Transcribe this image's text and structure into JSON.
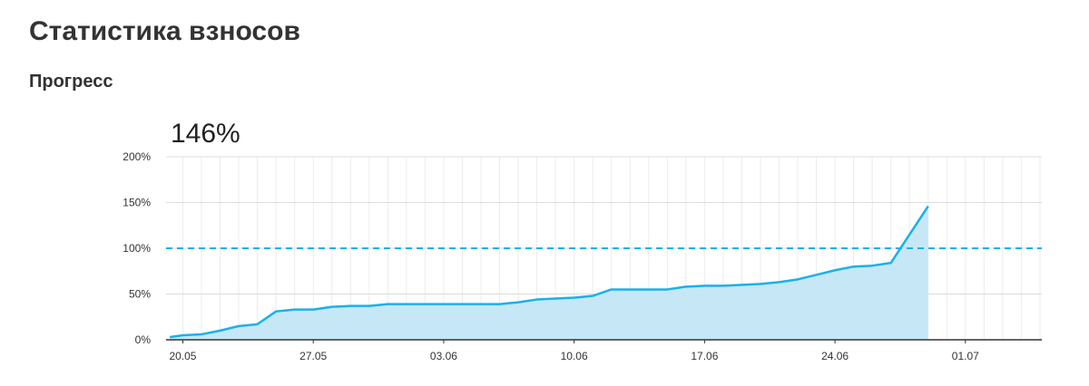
{
  "header": {
    "title": "Статистика взносов",
    "subtitle": "Прогресс"
  },
  "chart_data": {
    "type": "area",
    "headline": "146%",
    "x": [
      -0.7,
      0,
      1,
      2,
      3,
      4,
      5,
      6,
      7,
      8,
      9,
      10,
      11,
      12,
      13,
      14,
      15,
      16,
      17,
      18,
      19,
      20,
      21,
      22,
      23,
      24,
      25,
      26,
      27,
      28,
      29,
      30,
      31,
      32,
      33,
      34,
      35,
      36,
      37,
      38,
      39,
      40
    ],
    "series": [
      {
        "name": "Прогресс",
        "color": "#1ab0ec",
        "fill": "#c6e7f5",
        "values": [
          3,
          5,
          6,
          10,
          15,
          17,
          31,
          33,
          33,
          36,
          37,
          37,
          39,
          39,
          39,
          39,
          39,
          39,
          39,
          41,
          44,
          45,
          46,
          48,
          55,
          55,
          55,
          55,
          58,
          59,
          59,
          60,
          61,
          63,
          66,
          71,
          76,
          80,
          81,
          84,
          115,
          146
        ]
      }
    ],
    "target": 100,
    "target_color": "#1ab0ec",
    "xlim": [
      -0.9,
      46.1
    ],
    "xticks": [
      {
        "value": 0,
        "label": "20.05"
      },
      {
        "value": 7,
        "label": "27.05"
      },
      {
        "value": 14,
        "label": "03.06"
      },
      {
        "value": 21,
        "label": "10.06"
      },
      {
        "value": 28,
        "label": "17.06"
      },
      {
        "value": 35,
        "label": "24.06"
      },
      {
        "value": 42,
        "label": "01.07"
      }
    ],
    "ylim": [
      0,
      200
    ],
    "yticks": [
      {
        "value": 0,
        "label": "0%"
      },
      {
        "value": 50,
        "label": "50%"
      },
      {
        "value": 100,
        "label": "100%"
      },
      {
        "value": 150,
        "label": "150%"
      },
      {
        "value": 200,
        "label": "200%"
      }
    ],
    "grid": true
  }
}
